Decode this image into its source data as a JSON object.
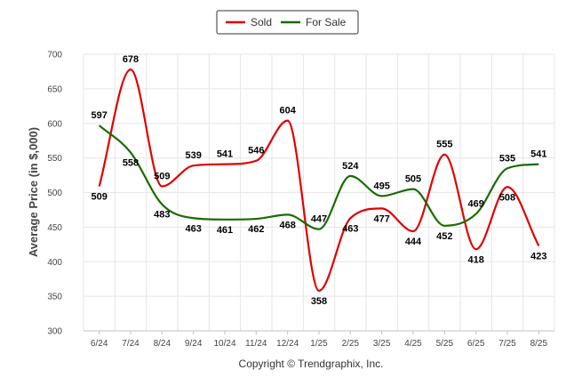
{
  "chart_data": {
    "type": "line",
    "categories": [
      "6/24",
      "7/24",
      "8/24",
      "9/24",
      "10/24",
      "11/24",
      "12/24",
      "1/25",
      "2/25",
      "3/25",
      "4/25",
      "5/25",
      "6/25",
      "7/25",
      "8/25"
    ],
    "series": [
      {
        "name": "Sold",
        "color": "#e00000",
        "values": [
          509,
          678,
          509,
          539,
          541,
          546,
          604,
          358,
          463,
          477,
          444,
          555,
          418,
          508,
          423
        ]
      },
      {
        "name": "For Sale",
        "color": "#1a6b00",
        "values": [
          597,
          558,
          483,
          463,
          461,
          462,
          468,
          447,
          524,
          495,
          505,
          452,
          469,
          535,
          541
        ]
      }
    ],
    "ylabel": "Average Price (in $,000)",
    "ylim": [
      300,
      700
    ],
    "yticks": [
      300,
      350,
      400,
      450,
      500,
      550,
      600,
      650,
      700
    ],
    "grid": true,
    "legend_position": "top-center"
  },
  "footer": {
    "copyright": "Copyright © Trendgraphix, Inc."
  }
}
